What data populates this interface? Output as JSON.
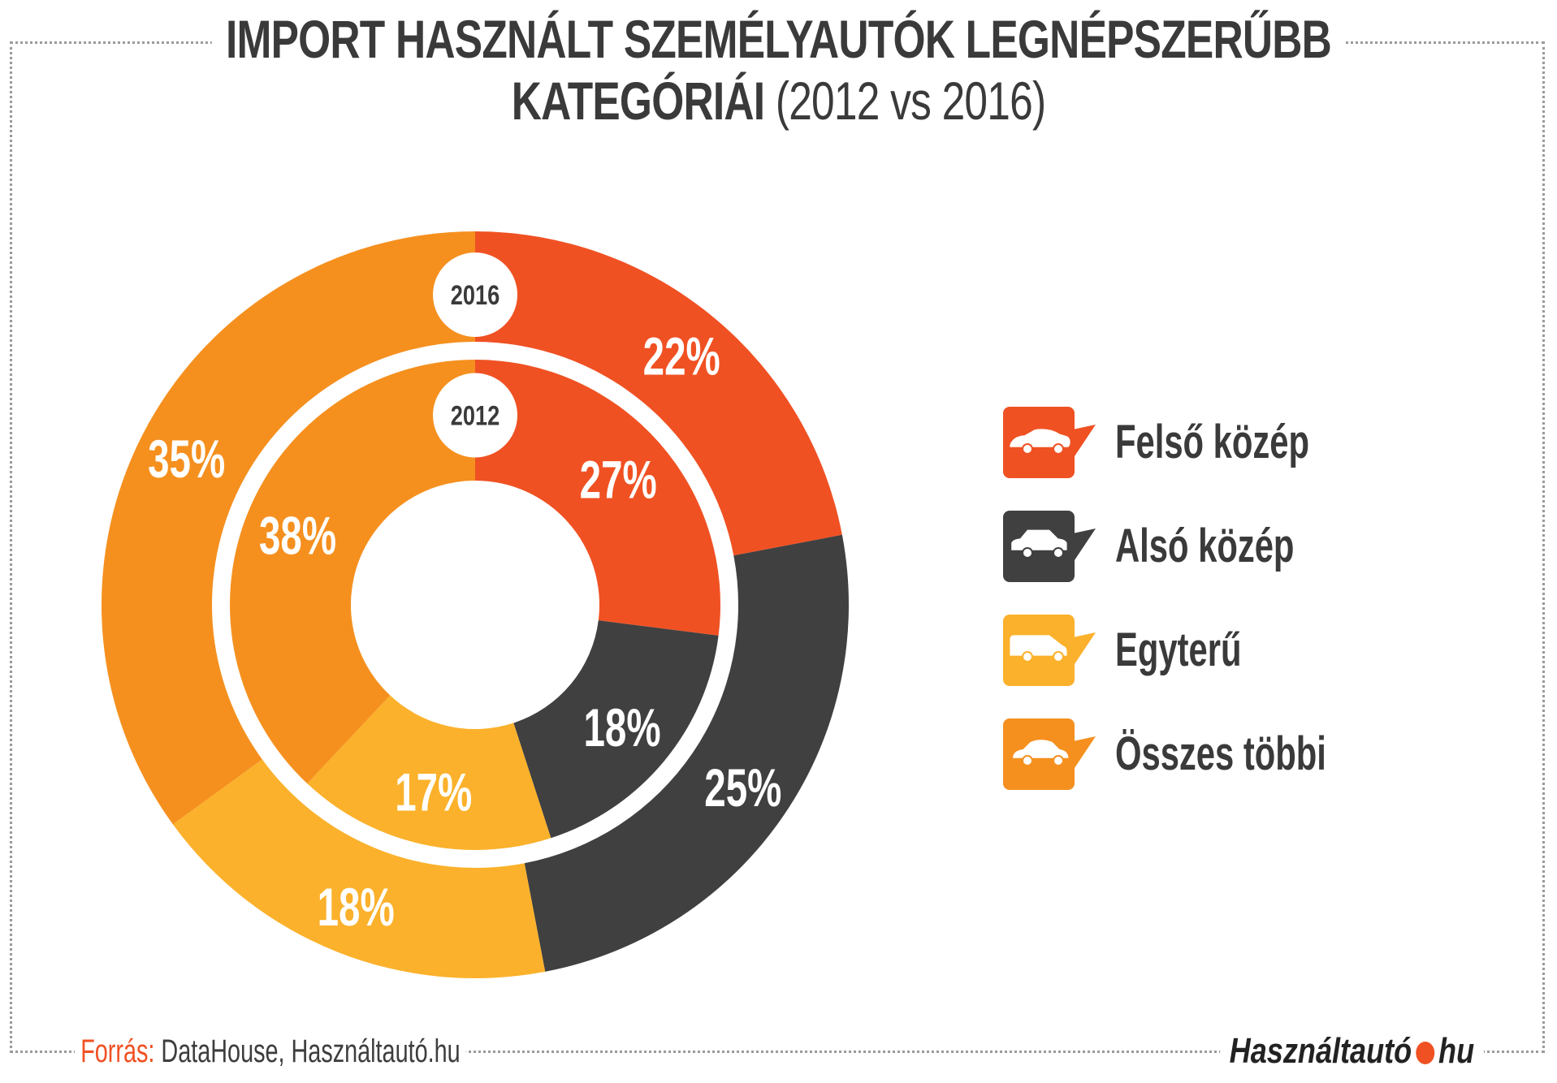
{
  "chart_data": {
    "type": "pie",
    "subtype": "nested-donut",
    "title": "IMPORT HASZNÁLT SZEMÉLYAUTÓK LEGNÉPSZERŰBB KATEGÓRIÁI",
    "title_line1": "IMPORT HASZNÁLT SZEMÉLYAUTÓK LEGNÉPSZERŰBB",
    "title_line2": "KATEGÓRIÁI",
    "subtitle": "(2012 vs 2016)",
    "categories": [
      "Felső közép",
      "Alsó közép",
      "Egyterű",
      "Összes többi"
    ],
    "colors": [
      "#f05123",
      "#404040",
      "#fbb12b",
      "#f5901f"
    ],
    "icons": [
      "sedan-car-icon",
      "compact-car-icon",
      "minivan-icon",
      "small-car-icon"
    ],
    "series": [
      {
        "name": "2016",
        "ring": "outer",
        "values": [
          22,
          25,
          18,
          35
        ],
        "labels": [
          "22%",
          "25%",
          "18%",
          "35%"
        ]
      },
      {
        "name": "2012",
        "ring": "inner",
        "values": [
          27,
          18,
          17,
          38
        ],
        "labels": [
          "27%",
          "18%",
          "17%",
          "38%"
        ]
      }
    ],
    "legend_position": "right"
  },
  "footer": {
    "source_label": "Forrás:",
    "source_text": " DataHouse, Használtautó.hu",
    "logo_left": "Használtautó",
    "logo_right": "hu"
  }
}
